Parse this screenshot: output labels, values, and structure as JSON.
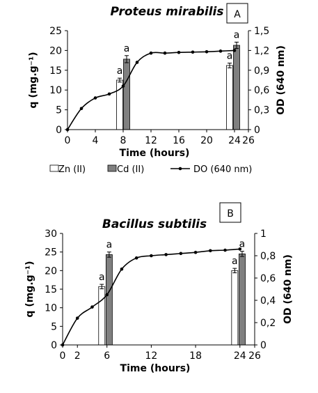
{
  "chart_data": [
    {
      "type": "bar+line",
      "title": "Proteus mirabilis",
      "panel_label": "A",
      "xlabel": "Time (hours)",
      "ylabel_left": "q (mg.g⁻¹)",
      "ylabel_right": "OD (640 nm)",
      "xlim": [
        0,
        26
      ],
      "ylim_left": [
        0,
        25
      ],
      "ylim_right": [
        0,
        1.5
      ],
      "x_ticks": [
        "0",
        "4",
        "8",
        "12",
        "16",
        "20",
        "24",
        "26"
      ],
      "x_tick_values": [
        0,
        4,
        8,
        12,
        16,
        20,
        24,
        26
      ],
      "y_left_ticks": [
        "0",
        "5",
        "10",
        "15",
        "20",
        "25"
      ],
      "y_left_tick_values": [
        0,
        5,
        10,
        15,
        20,
        25
      ],
      "y_right_ticks": [
        "0",
        "0,3",
        "0,6",
        "0,9",
        "1,2",
        "1,5"
      ],
      "y_right_tick_values": [
        0,
        0.3,
        0.6,
        0.9,
        1.2,
        1.5
      ],
      "grid": false,
      "legend_position": "bottom",
      "legend": [
        "Zn (II)",
        "Cd (II)",
        "DO (640 nm)"
      ],
      "bars": [
        {
          "series": "Zn (II)",
          "x": 7.5,
          "value": 12.5,
          "error": 0.5,
          "label": "a"
        },
        {
          "series": "Cd (II)",
          "x": 8.5,
          "value": 17.8,
          "error": 0.9,
          "label": "a"
        },
        {
          "series": "Zn (II)",
          "x": 23.3,
          "value": 16.2,
          "error": 0.6,
          "label": "a"
        },
        {
          "series": "Cd (II)",
          "x": 24.3,
          "value": 21.3,
          "error": 0.8,
          "label": "a"
        }
      ],
      "line": {
        "name": "DO (640 nm)",
        "x": [
          0,
          2,
          4,
          6,
          8,
          10,
          12,
          14,
          16,
          18,
          20,
          22,
          24
        ],
        "y": [
          0.0,
          0.32,
          0.48,
          0.54,
          0.66,
          1.02,
          1.16,
          1.16,
          1.17,
          1.175,
          1.18,
          1.19,
          1.2
        ]
      }
    },
    {
      "type": "bar+line",
      "title": "Bacillus subtilis",
      "panel_label": "B",
      "xlabel": "Time (hours)",
      "ylabel_left": "q (mg.g⁻¹)",
      "ylabel_right": "OD (640 nm)",
      "xlim": [
        0,
        26
      ],
      "ylim_left": [
        0,
        30
      ],
      "ylim_right": [
        0,
        1
      ],
      "x_ticks": [
        "0",
        "2",
        "6",
        "12",
        "18",
        "24",
        "26"
      ],
      "x_tick_values": [
        0,
        2,
        6,
        12,
        18,
        24,
        26
      ],
      "y_left_ticks": [
        "0",
        "5",
        "10",
        "15",
        "20",
        "25",
        "30"
      ],
      "y_left_tick_values": [
        0,
        5,
        10,
        15,
        20,
        25,
        30
      ],
      "y_right_ticks": [
        "0",
        "0,2",
        "0,4",
        "0,6",
        "0,8",
        "1"
      ],
      "y_right_tick_values": [
        0,
        0.2,
        0.4,
        0.6,
        0.8,
        1.0
      ],
      "grid": false,
      "legend_position": "bottom",
      "legend": [
        "Zn (II)",
        "Cd (II)",
        "DO (640 nm)"
      ],
      "bars": [
        {
          "series": "Zn (II)",
          "x": 5.3,
          "value": 15.7,
          "error": 0.6,
          "label": "a"
        },
        {
          "series": "Cd (II)",
          "x": 6.3,
          "value": 24.3,
          "error": 0.7,
          "label": "a"
        },
        {
          "series": "Zn (II)",
          "x": 23.3,
          "value": 20.0,
          "error": 0.6,
          "label": "a"
        },
        {
          "series": "Cd (II)",
          "x": 24.3,
          "value": 24.5,
          "error": 0.7,
          "label": "a"
        }
      ],
      "line": {
        "name": "DO (640 nm)",
        "x": [
          0,
          2,
          4,
          6,
          8,
          10,
          12,
          14,
          16,
          18,
          20,
          22,
          24
        ],
        "y": [
          0.0,
          0.24,
          0.34,
          0.45,
          0.68,
          0.78,
          0.8,
          0.81,
          0.82,
          0.83,
          0.845,
          0.85,
          0.86
        ]
      }
    }
  ],
  "colors": {
    "zn_fill": "#ffffff",
    "cd_fill": "#808080",
    "line": "#000000",
    "axis": "#000000",
    "errorbar": "#000000"
  }
}
